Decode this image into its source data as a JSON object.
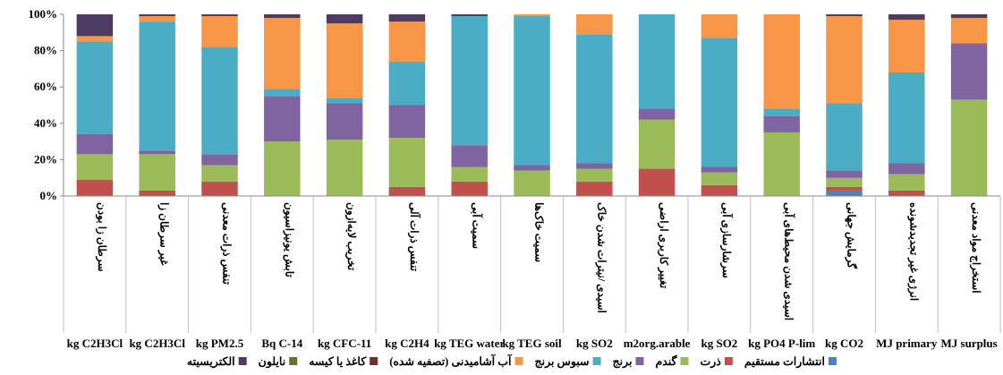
{
  "chart_data": {
    "type": "bar",
    "stacked": true,
    "percent": true,
    "ylim": [
      0,
      100
    ],
    "yticks": [
      "0%",
      "20%",
      "40%",
      "60%",
      "80%",
      "100%"
    ],
    "grid": false,
    "legend_position": "bottom",
    "categories": [
      "سرطان زا بودن",
      "غیر سرطان زا",
      "تنفس ذرات معدنی",
      "تابش یونیزاسیون",
      "تخریب لایه‌ازون",
      "تنفس ذرات آلی",
      "سمیت آبی",
      "سمیت خاک‌ها",
      "اسیدی /نیترات شدن خاک",
      "تغییر کاربری اراضی",
      "سرشارسازی آبی",
      "اسیدی شدن محیط‌های آبی",
      "گرمایش جهانی",
      "انرژی غیر تجدیدشونده",
      "استخراج مواد معدنی"
    ],
    "units": [
      "kg C2H3Cl",
      "kg C2H3Cl",
      "kg PM2.5",
      "Bq C-14",
      "kg CFC-11",
      "kg C2H4",
      "kg TEG water",
      "kg TEG soil",
      "kg SO2",
      "m2org.arable",
      "kg SO2",
      "kg PO4 P-lim",
      "kg CO2",
      "MJ primary",
      "MJ surplus"
    ],
    "series": [
      {
        "name": "انتشارات مستقیم",
        "color": "#4F81BD",
        "values": [
          0,
          0,
          0,
          0,
          0,
          0,
          0,
          0,
          0,
          0,
          0,
          0,
          3,
          0,
          0
        ]
      },
      {
        "name": "ذرت",
        "color": "#C0504D",
        "values": [
          9,
          3,
          8,
          0,
          0,
          5,
          8,
          0,
          8,
          15,
          6,
          0,
          2,
          3,
          0
        ]
      },
      {
        "name": "گندم",
        "color": "#9BBB59",
        "values": [
          14,
          20,
          9,
          30,
          31,
          27,
          8,
          14,
          7,
          27,
          7,
          35,
          5,
          9,
          53
        ]
      },
      {
        "name": "برنج",
        "color": "#8064A2",
        "values": [
          11,
          2,
          6,
          25,
          20,
          18,
          12,
          3,
          3,
          6,
          3,
          9,
          4,
          6,
          31
        ]
      },
      {
        "name": "سبوس برنج",
        "color": "#4BACC6",
        "values": [
          51,
          71,
          59,
          4,
          3,
          24,
          71,
          82,
          71,
          52,
          71,
          4,
          37,
          50,
          0
        ]
      },
      {
        "name": "آب آشامیدنی (تصفیه شده)",
        "color": "#F79646",
        "values": [
          3,
          3,
          17,
          39,
          41,
          22,
          0,
          1,
          11,
          0,
          13,
          52,
          48,
          29,
          14
        ]
      },
      {
        "name": "کاغذ یا کیسه",
        "color": "#772C2A",
        "values": [
          0,
          0,
          0,
          0,
          0,
          0,
          0,
          0,
          0,
          0,
          0,
          0,
          0,
          0,
          0
        ]
      },
      {
        "name": "نایلون",
        "color": "#5F7530",
        "values": [
          0,
          0,
          0,
          0,
          0,
          0,
          0,
          0,
          0,
          0,
          0,
          0,
          0,
          0,
          0
        ]
      },
      {
        "name": "الکتریسیته",
        "color": "#4D3B62",
        "values": [
          12,
          1,
          1,
          2,
          5,
          4,
          1,
          0,
          0,
          0,
          0,
          0,
          1,
          3,
          2
        ]
      }
    ]
  }
}
